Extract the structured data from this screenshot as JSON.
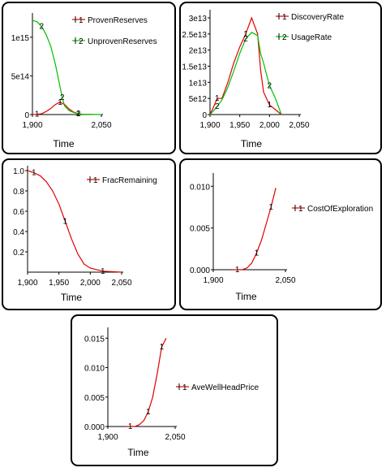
{
  "chart_data": [
    {
      "type": "line",
      "xlabel": "Time",
      "ylabel": "",
      "xlim": [
        1900,
        2050
      ],
      "ylim": [
        0,
        1250000000000000.0
      ],
      "x_ticks": [
        1900,
        2050
      ],
      "x_tick_labels": [
        "1,900",
        "2,050"
      ],
      "y_ticks": [
        0,
        500000000000000.0,
        1000000000000000.0
      ],
      "y_tick_labels": [
        "0",
        "5e14",
        "1e15"
      ],
      "grid": false,
      "legend_position": "top-right",
      "series": [
        {
          "name": "ProvenReserves",
          "marker": "1",
          "color": "#e00000",
          "points": [
            [
              1900,
              0
            ],
            [
              1910,
              3000000000000.0
            ],
            [
              1920,
              10000000000000.0
            ],
            [
              1930,
              40000000000000.0
            ],
            [
              1940,
              80000000000000.0
            ],
            [
              1950,
              130000000000000.0
            ],
            [
              1960,
              160000000000000.0
            ],
            [
              1970,
              130000000000000.0
            ],
            [
              1980,
              70000000000000.0
            ],
            [
              1990,
              30000000000000.0
            ],
            [
              2000,
              10000000000000.0
            ],
            [
              2010,
              0
            ]
          ]
        },
        {
          "name": "UnprovenReserves",
          "marker": "2",
          "color": "#00c000",
          "points": [
            [
              1900,
              1220000000000000.0
            ],
            [
              1910,
              1200000000000000.0
            ],
            [
              1920,
              1140000000000000.0
            ],
            [
              1930,
              1030000000000000.0
            ],
            [
              1940,
              880000000000000.0
            ],
            [
              1950,
              650000000000000.0
            ],
            [
              1960,
              360000000000000.0
            ],
            [
              1965,
              220000000000000.0
            ],
            [
              1970,
              110000000000000.0
            ],
            [
              1980,
              50000000000000.0
            ],
            [
              1990,
              25000000000000.0
            ],
            [
              2000,
              10000000000000.0
            ],
            [
              2010,
              4000000000000.0
            ],
            [
              2050,
              0
            ]
          ]
        }
      ]
    },
    {
      "type": "line",
      "xlabel": "Time",
      "ylabel": "",
      "xlim": [
        1900,
        2050
      ],
      "ylim": [
        0,
        31000000000000.0
      ],
      "x_ticks": [
        1900,
        1950,
        2000,
        2050
      ],
      "x_tick_labels": [
        "1,900",
        "1,950",
        "2,000",
        "2,050"
      ],
      "y_ticks": [
        0,
        5000000000000.0,
        10000000000000.0,
        15000000000000.0,
        20000000000000.0,
        25000000000000.0,
        30000000000000.0
      ],
      "y_tick_labels": [
        "0",
        "5e12",
        "1e13",
        "1.5e13",
        "2e13",
        "2.5e13",
        "3e13"
      ],
      "grid": false,
      "legend_position": "top-right",
      "series": [
        {
          "name": "DiscoveryRate",
          "marker": "1",
          "color": "#e00000",
          "points": [
            [
              1900,
              0
            ],
            [
              1905,
              2000000000000.0
            ],
            [
              1912,
              5000000000000.0
            ],
            [
              1920,
              5000000000000.0
            ],
            [
              1930,
              10000000000000.0
            ],
            [
              1940,
              16000000000000.0
            ],
            [
              1950,
              21000000000000.0
            ],
            [
              1960,
              25000000000000.0
            ],
            [
              1970,
              30000000000000.0
            ],
            [
              1980,
              25000000000000.0
            ],
            [
              1985,
              14000000000000.0
            ],
            [
              1990,
              7000000000000.0
            ],
            [
              2000,
              3000000000000.0
            ],
            [
              2010,
              1500000000000.0
            ],
            [
              2020,
              0
            ]
          ]
        },
        {
          "name": "UsageRate",
          "marker": "2",
          "color": "#00c000",
          "points": [
            [
              1900,
              0
            ],
            [
              1905,
              1000000000000.0
            ],
            [
              1912,
              2500000000000.0
            ],
            [
              1920,
              4500000000000.0
            ],
            [
              1930,
              8500000000000.0
            ],
            [
              1940,
              13500000000000.0
            ],
            [
              1950,
              19000000000000.0
            ],
            [
              1960,
              23500000000000.0
            ],
            [
              1970,
              25500000000000.0
            ],
            [
              1980,
              24500000000000.0
            ],
            [
              1985,
              19000000000000.0
            ],
            [
              1990,
              16000000000000.0
            ],
            [
              2000,
              9000000000000.0
            ],
            [
              2010,
              5000000000000.0
            ],
            [
              2020,
              0
            ]
          ]
        }
      ]
    },
    {
      "type": "line",
      "xlabel": "Time",
      "ylabel": "",
      "xlim": [
        1900,
        2050
      ],
      "ylim": [
        0,
        1.0
      ],
      "x_ticks": [
        1900,
        1950,
        2000,
        2050
      ],
      "x_tick_labels": [
        "1,900",
        "1,950",
        "2,000",
        "2,050"
      ],
      "y_ticks": [
        0.2,
        0.4,
        0.6,
        0.8,
        1.0
      ],
      "y_tick_labels": [
        "0.2",
        "0.4",
        "0.6",
        "0.8",
        "1.0"
      ],
      "grid": false,
      "legend_position": "top-right",
      "series": [
        {
          "name": "FracRemaining",
          "marker": "1",
          "color": "#e00000",
          "points": [
            [
              1900,
              1.0
            ],
            [
              1910,
              0.98
            ],
            [
              1920,
              0.95
            ],
            [
              1930,
              0.89
            ],
            [
              1940,
              0.8
            ],
            [
              1950,
              0.67
            ],
            [
              1960,
              0.5
            ],
            [
              1970,
              0.33
            ],
            [
              1980,
              0.18
            ],
            [
              1990,
              0.08
            ],
            [
              2000,
              0.04
            ],
            [
              2020,
              0.01
            ],
            [
              2050,
              0.0
            ]
          ]
        }
      ]
    },
    {
      "type": "line",
      "xlabel": "Time",
      "ylabel": "",
      "xlim": [
        1900,
        2050
      ],
      "ylim": [
        0,
        0.011
      ],
      "x_ticks": [
        1900,
        2050
      ],
      "x_tick_labels": [
        "1,900",
        "2,050"
      ],
      "y_ticks": [
        0,
        0.005,
        0.01
      ],
      "y_tick_labels": [
        "0.000",
        "0.005",
        "0.010"
      ],
      "grid": false,
      "legend_position": "right",
      "series": [
        {
          "name": "CostOfExploration",
          "marker": "1",
          "color": "#e00000",
          "points": [
            [
              1940,
              0
            ],
            [
              1950,
              0
            ],
            [
              1960,
              0
            ],
            [
              1970,
              0.0002
            ],
            [
              1980,
              0.0008
            ],
            [
              1990,
              0.002
            ],
            [
              2000,
              0.0035
            ],
            [
              2010,
              0.0055
            ],
            [
              2020,
              0.0075
            ],
            [
              2030,
              0.0098
            ]
          ]
        }
      ]
    },
    {
      "type": "line",
      "xlabel": "Time",
      "ylabel": "",
      "xlim": [
        1900,
        2050
      ],
      "ylim": [
        0,
        0.016
      ],
      "x_ticks": [
        1900,
        2050
      ],
      "x_tick_labels": [
        "1,900",
        "2,050"
      ],
      "y_ticks": [
        0,
        0.005,
        0.01,
        0.015
      ],
      "y_tick_labels": [
        "0.000",
        "0.005",
        "0.010",
        "0.015"
      ],
      "grid": false,
      "legend_position": "right",
      "series": [
        {
          "name": "AveWellHeadPrice",
          "marker": "1",
          "color": "#e00000",
          "points": [
            [
              1940,
              0
            ],
            [
              1950,
              0
            ],
            [
              1960,
              0
            ],
            [
              1970,
              0.0003
            ],
            [
              1980,
              0.001
            ],
            [
              1990,
              0.0025
            ],
            [
              2000,
              0.005
            ],
            [
              2010,
              0.009
            ],
            [
              2020,
              0.0135
            ],
            [
              2030,
              0.015
            ]
          ]
        }
      ]
    }
  ]
}
